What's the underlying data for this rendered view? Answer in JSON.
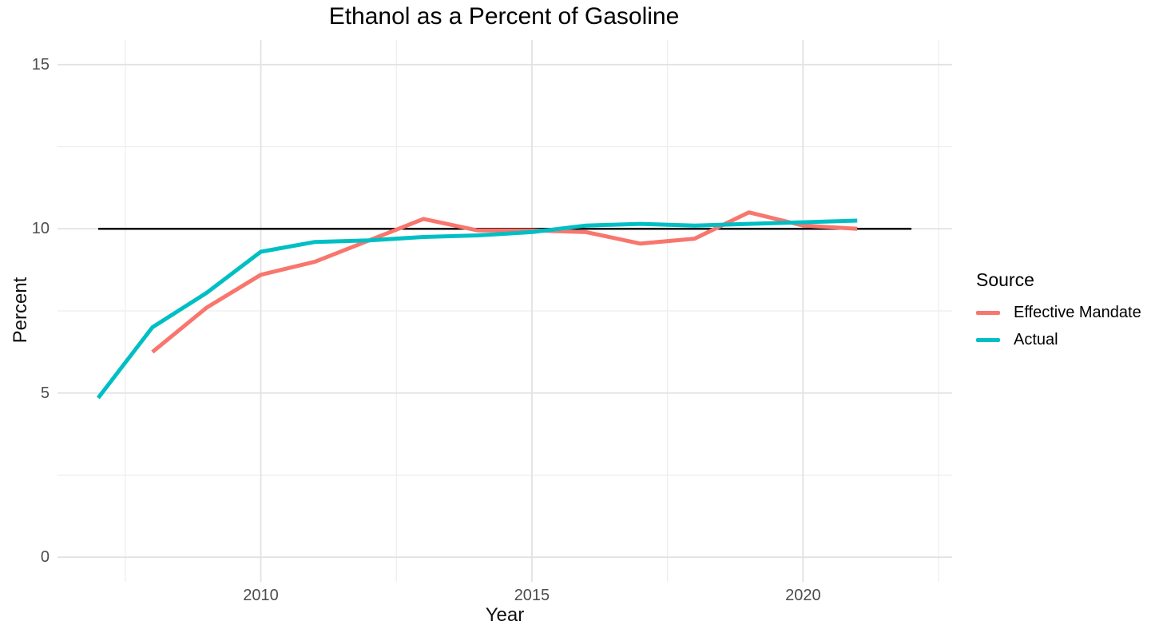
{
  "chart_data": {
    "type": "line",
    "title": "Ethanol as a Percent of Gasoline",
    "xlabel": "Year",
    "ylabel": "Percent",
    "xlim": [
      2006.25,
      2022.75
    ],
    "ylim": [
      -0.75,
      15.75
    ],
    "x_ticks": [
      {
        "value": 2010,
        "label": "2010"
      },
      {
        "value": 2015,
        "label": "2015"
      },
      {
        "value": 2020,
        "label": "2020"
      }
    ],
    "y_ticks": [
      {
        "value": 0,
        "label": "0"
      },
      {
        "value": 5,
        "label": "5"
      },
      {
        "value": 10,
        "label": "10"
      },
      {
        "value": 15,
        "label": "15"
      }
    ],
    "x_minor_ticks": [
      2007.5,
      2012.5,
      2017.5,
      2022.5
    ],
    "y_minor_ticks": [
      2.5,
      7.5,
      12.5
    ],
    "grid": "on",
    "grid_major_color": "#e2e2e2",
    "grid_minor_color": "#ededed",
    "background_color": "#ffffff",
    "reference_line": {
      "y": 10,
      "x_start": 2007,
      "x_end": 2022,
      "color": "#000000",
      "width": 2.5
    },
    "series": [
      {
        "name": "Effective Mandate",
        "color": "#F8766D",
        "x": [
          2008,
          2009,
          2010,
          2011,
          2012,
          2013,
          2014,
          2015,
          2016,
          2017,
          2018,
          2019,
          2020,
          2021
        ],
        "values": [
          6.25,
          7.6,
          8.6,
          9.0,
          9.65,
          10.3,
          9.95,
          9.95,
          9.9,
          9.55,
          9.7,
          10.5,
          10.1,
          10.0
        ]
      },
      {
        "name": "Actual",
        "color": "#00BFC4",
        "x": [
          2007,
          2008,
          2009,
          2010,
          2011,
          2012,
          2013,
          2014,
          2015,
          2016,
          2017,
          2018,
          2019,
          2020,
          2021
        ],
        "values": [
          4.85,
          7.0,
          8.05,
          9.3,
          9.6,
          9.65,
          9.75,
          9.8,
          9.9,
          10.1,
          10.15,
          10.1,
          10.15,
          10.2,
          10.25
        ]
      }
    ],
    "legend": {
      "title": "Source",
      "position": "right"
    }
  }
}
